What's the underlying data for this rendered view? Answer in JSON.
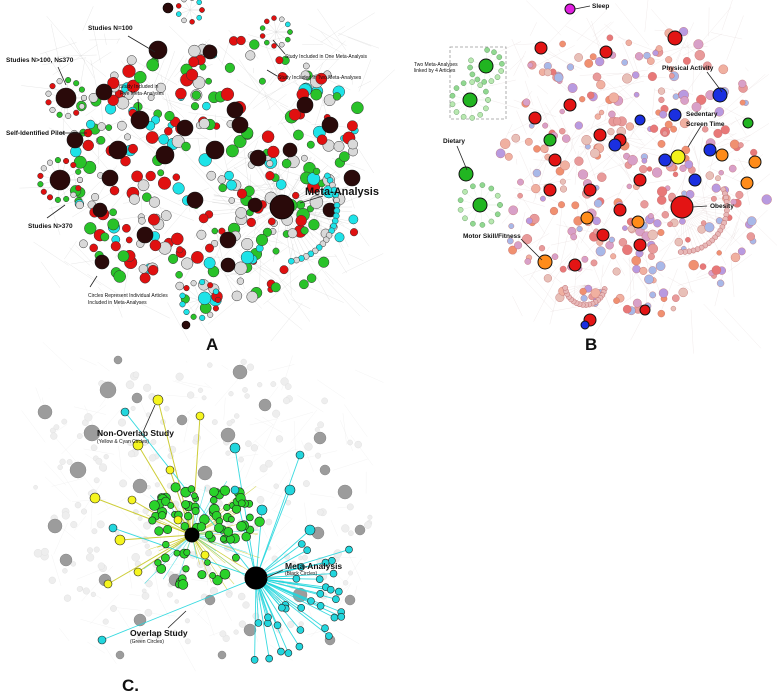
{
  "figure": {
    "panels": [
      {
        "id": "A",
        "letter": "A",
        "labels": {
          "studies_n100": "Studies N=100",
          "studies_n100_370": "Studies N>100, N≤370",
          "study_one": "Study Included in One Meta-Analysis",
          "study_two": "Study Included in Two Meta-Analyses",
          "study_five": "Study Included in Five Meta-Analyses",
          "self_pilot": "Self-Identified Pilot",
          "meta_analysis": "Meta-Analysis",
          "studies_n370": "Studies N>370",
          "circles_represent": "Circles Represent Individual Articles Included in Meta-Analyses"
        },
        "colors": {
          "black": "#2a0a0a",
          "grey": "#d9d9d9",
          "green": "#29c229",
          "red": "#e01010",
          "cyan": "#1ee3e8"
        }
      },
      {
        "id": "B",
        "letter": "B",
        "labels": {
          "sleep": "Sleep",
          "two_meta": "Two Meta-Analyses linked by 4 Articles",
          "physical_activity": "Physical Activity",
          "sedentary": "Sedentary Screen Time",
          "dietary": "Dietary",
          "motor": "Motor Skill/Fitness",
          "obesity": "Obesity"
        },
        "colors": {
          "obesity": "#e31414",
          "physical_activity": "#1a2fe0",
          "sedentary": "#f2f21a",
          "dietary": "#21b521",
          "motor": "#ff8c1a",
          "sleep": "#e020e0",
          "article": "#e89a9a"
        }
      },
      {
        "id": "C",
        "letter": "C.",
        "labels": {
          "non_overlap": "Non-Overlap Study",
          "non_overlap_sub": "(Yellow & Cyan Circles)",
          "meta_analysis": "Meta-Analysis",
          "meta_analysis_sub": "(Black Circles)",
          "overlap": "Overlap Study",
          "overlap_sub": "(Green Circles)"
        },
        "colors": {
          "grey": "#9c9c9c",
          "yellow": "#f5f51f",
          "cyan": "#22d6dd",
          "green": "#2ad22a",
          "black": "#000000"
        }
      }
    ]
  }
}
